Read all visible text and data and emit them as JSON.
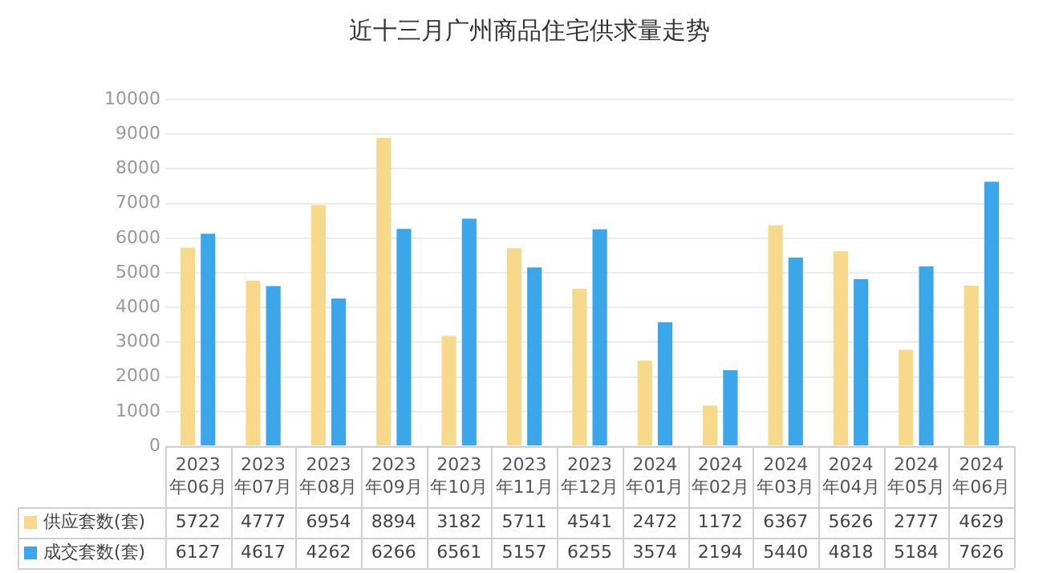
{
  "chart_data": {
    "type": "bar",
    "title": "近十三月广州商品住宅供求量走势",
    "categories": [
      "2023年06月",
      "2023年07月",
      "2023年08月",
      "2023年09月",
      "2023年10月",
      "2023年11月",
      "2023年12月",
      "2024年01月",
      "2024年02月",
      "2024年03月",
      "2024年04月",
      "2024年05月",
      "2024年06月"
    ],
    "series": [
      {
        "name": "供应套数(套)",
        "color": "#f6d98b",
        "values": [
          5722,
          4777,
          6954,
          8894,
          3182,
          5711,
          4541,
          2472,
          1172,
          6367,
          5626,
          2777,
          4629
        ]
      },
      {
        "name": "成交套数(套)",
        "color": "#3ba7ea",
        "values": [
          6127,
          4617,
          4262,
          6266,
          6561,
          5157,
          6255,
          3574,
          2194,
          5440,
          4818,
          5184,
          7626
        ]
      }
    ],
    "ylim": [
      0,
      10000
    ],
    "yticks": [
      0,
      1000,
      2000,
      3000,
      4000,
      5000,
      6000,
      7000,
      8000,
      9000,
      10000
    ],
    "grid": "y",
    "legend": "bottom",
    "data_labels": true
  }
}
